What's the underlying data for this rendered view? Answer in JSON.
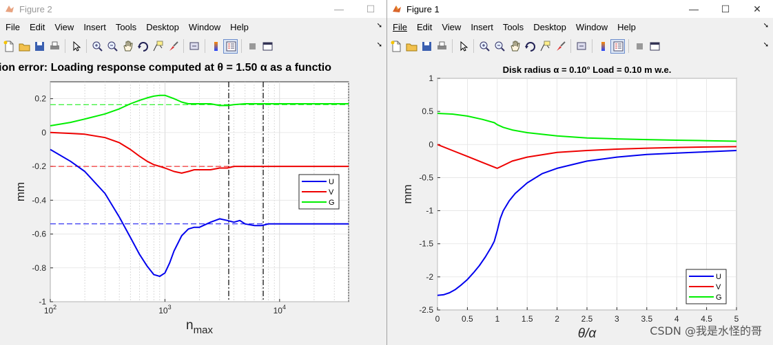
{
  "window2": {
    "title": "Figure 2",
    "menu": [
      "File",
      "Edit",
      "View",
      "Insert",
      "Tools",
      "Desktop",
      "Window",
      "Help"
    ],
    "plot_title": "ion error: Loading response computed at θ = 1.50 α as a functio"
  },
  "window1": {
    "title": "Figure 1",
    "menu": [
      "File",
      "Edit",
      "View",
      "Insert",
      "Tools",
      "Desktop",
      "Window",
      "Help"
    ],
    "plot_title": "Disk radius α = 0.10°  Load = 0.10 m w.e."
  },
  "toolbar_icons": [
    "new-figure-icon",
    "open-icon",
    "save-icon",
    "print-icon",
    "pointer-icon",
    "zoom-in-icon",
    "zoom-out-icon",
    "pan-icon",
    "rotate-icon",
    "data-cursor-icon",
    "brush-icon",
    "link-icon",
    "colorbar-icon",
    "legend-icon",
    "hide-tools-icon",
    "show-tools-icon"
  ],
  "window_controls": {
    "minimize": "—",
    "maximize": "☐",
    "close": "✕"
  },
  "watermark": "CSDN @我是水怪的哥",
  "colors": {
    "U": "#0000ee",
    "V": "#ee0000",
    "G": "#00ee00"
  },
  "chart_data": [
    {
      "type": "line",
      "title": "ion error: Loading response computed at θ = 1.50 α as a functio",
      "xlabel": "n_max",
      "ylabel": "mm",
      "xscale": "log",
      "xlim": [
        100,
        40000
      ],
      "ylim": [
        -1,
        0.3
      ],
      "xticks": [
        100,
        1000,
        10000
      ],
      "xtick_labels": [
        "10^2",
        "10^3",
        "10^4"
      ],
      "yticks": [
        0.2,
        0,
        -0.2,
        -0.4,
        -0.6,
        -0.8,
        -1
      ],
      "ytick_labels": [
        "0.2",
        "0",
        "-0.2",
        "-0.4",
        "-0.6",
        "-0.8",
        "-1"
      ],
      "grid": true,
      "legend": "right",
      "vlines": [
        3600,
        7200
      ],
      "series": [
        {
          "name": "U",
          "x": [
            100,
            150,
            200,
            300,
            400,
            500,
            600,
            700,
            800,
            900,
            1000,
            1100,
            1200,
            1400,
            1600,
            1800,
            2000,
            2500,
            3000,
            3500,
            4000,
            4500,
            5000,
            6000,
            7000,
            8000,
            10000,
            15000,
            20000,
            40000
          ],
          "y": [
            -0.1,
            -0.17,
            -0.23,
            -0.36,
            -0.5,
            -0.62,
            -0.72,
            -0.79,
            -0.84,
            -0.85,
            -0.83,
            -0.77,
            -0.7,
            -0.61,
            -0.57,
            -0.56,
            -0.56,
            -0.53,
            -0.51,
            -0.52,
            -0.53,
            -0.52,
            -0.54,
            -0.55,
            -0.55,
            -0.54,
            -0.54,
            -0.54,
            -0.54,
            -0.54
          ],
          "reference": -0.54
        },
        {
          "name": "V",
          "x": [
            100,
            150,
            200,
            300,
            400,
            500,
            600,
            700,
            800,
            900,
            1000,
            1200,
            1400,
            1600,
            1800,
            2000,
            2500,
            3000,
            3500,
            4000,
            5000,
            6000,
            7000,
            8000,
            10000,
            15000,
            20000,
            40000
          ],
          "y": [
            0,
            -0.005,
            -0.01,
            -0.03,
            -0.06,
            -0.1,
            -0.14,
            -0.17,
            -0.19,
            -0.2,
            -0.21,
            -0.23,
            -0.24,
            -0.23,
            -0.22,
            -0.22,
            -0.22,
            -0.21,
            -0.21,
            -0.2,
            -0.2,
            -0.2,
            -0.2,
            -0.2,
            -0.2,
            -0.2,
            -0.2,
            -0.2
          ],
          "reference": -0.2
        },
        {
          "name": "G",
          "x": [
            100,
            150,
            200,
            300,
            400,
            500,
            600,
            700,
            800,
            900,
            1000,
            1200,
            1400,
            1600,
            1800,
            2000,
            2500,
            3000,
            3500,
            4000,
            5000,
            7000,
            10000,
            20000,
            40000
          ],
          "y": [
            0.04,
            0.06,
            0.08,
            0.11,
            0.14,
            0.17,
            0.19,
            0.205,
            0.215,
            0.22,
            0.22,
            0.2,
            0.18,
            0.17,
            0.17,
            0.17,
            0.17,
            0.16,
            0.16,
            0.165,
            0.17,
            0.17,
            0.17,
            0.17,
            0.17
          ],
          "reference": 0.165
        }
      ]
    },
    {
      "type": "line",
      "title": "Disk radius α = 0.10°  Load = 0.10 m w.e.",
      "xlabel": "θ/α",
      "ylabel": "mm",
      "xlim": [
        0,
        5
      ],
      "ylim": [
        -2.5,
        1
      ],
      "xticks": [
        0,
        0.5,
        1,
        1.5,
        2,
        2.5,
        3,
        3.5,
        4,
        4.5,
        5
      ],
      "xtick_labels": [
        "0",
        "0.5",
        "1",
        "1.5",
        "2",
        "2.5",
        "3",
        "3.5",
        "4",
        "4.5",
        "5"
      ],
      "yticks": [
        1,
        0.5,
        0,
        -0.5,
        -1,
        -1.5,
        -2,
        -2.5
      ],
      "ytick_labels": [
        "1",
        "0.5",
        "0",
        "-0.5",
        "-1",
        "-1.5",
        "-2",
        "-2.5"
      ],
      "grid": true,
      "legend": "bottom-right",
      "series": [
        {
          "name": "U",
          "x": [
            0,
            0.1,
            0.2,
            0.3,
            0.4,
            0.5,
            0.6,
            0.7,
            0.8,
            0.9,
            0.95,
            1,
            1.05,
            1.1,
            1.2,
            1.3,
            1.5,
            1.75,
            2,
            2.5,
            3,
            3.5,
            4,
            4.5,
            5
          ],
          "y": [
            -2.28,
            -2.27,
            -2.24,
            -2.19,
            -2.12,
            -2.04,
            -1.94,
            -1.83,
            -1.7,
            -1.55,
            -1.46,
            -1.3,
            -1.12,
            -1.0,
            -0.85,
            -0.74,
            -0.58,
            -0.44,
            -0.36,
            -0.25,
            -0.19,
            -0.15,
            -0.13,
            -0.11,
            -0.09
          ]
        },
        {
          "name": "V",
          "x": [
            0,
            0.25,
            0.5,
            0.75,
            1,
            1.25,
            1.5,
            2,
            2.5,
            3,
            3.5,
            4,
            4.5,
            5
          ],
          "y": [
            0,
            -0.09,
            -0.18,
            -0.27,
            -0.36,
            -0.25,
            -0.19,
            -0.12,
            -0.09,
            -0.07,
            -0.055,
            -0.045,
            -0.038,
            -0.032
          ]
        },
        {
          "name": "G",
          "x": [
            0,
            0.25,
            0.5,
            0.75,
            0.95,
            1,
            1.1,
            1.25,
            1.5,
            2,
            2.5,
            3,
            3.5,
            4,
            4.5,
            5
          ],
          "y": [
            0.47,
            0.46,
            0.43,
            0.38,
            0.33,
            0.3,
            0.26,
            0.22,
            0.18,
            0.13,
            0.1,
            0.085,
            0.075,
            0.065,
            0.058,
            0.05
          ]
        }
      ]
    }
  ]
}
